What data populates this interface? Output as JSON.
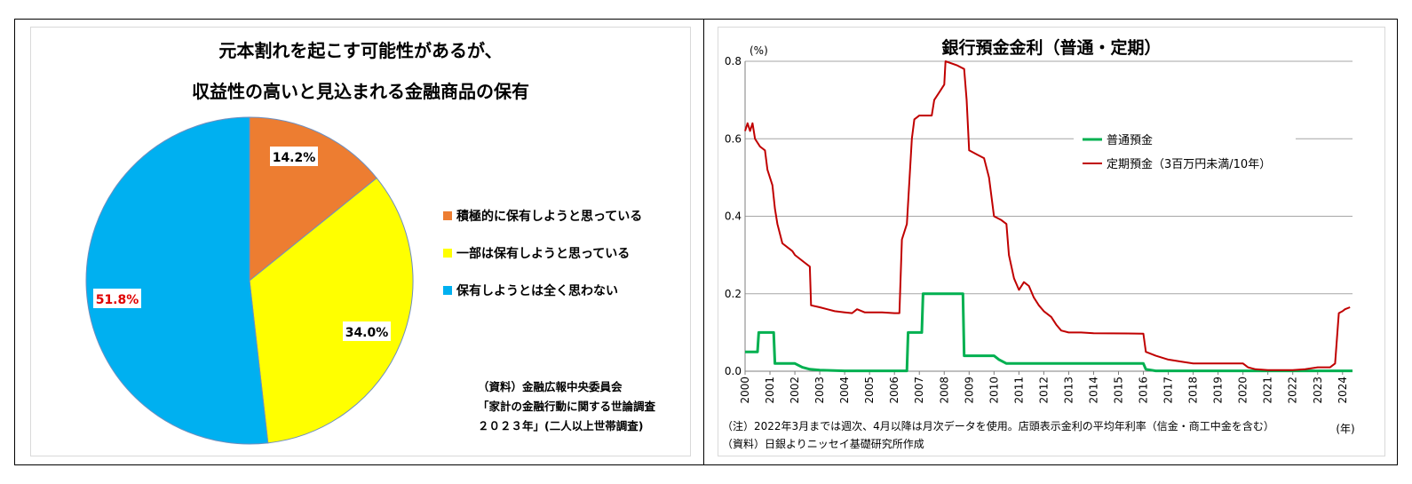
{
  "left": {
    "chart_data": {
      "type": "pie",
      "title_lines": [
        "元本割れを起こす可能性があるが、",
        "収益性の高いと見込まれる金融商品の保有"
      ],
      "slices": [
        {
          "label": "積極的に保有しようと思っている",
          "value": 14.2,
          "display": "14.2%",
          "color": "#ED7D31",
          "label_color": "#000000"
        },
        {
          "label": "一部は保有しようと思っている",
          "value": 34.0,
          "display": "34.0%",
          "color": "#FFFF00",
          "label_color": "#000000"
        },
        {
          "label": "保有しようとは全く思わない",
          "value": 51.8,
          "display": "51.8%",
          "color": "#00B0F0",
          "label_color": "#E00000"
        }
      ]
    },
    "source_lines": [
      "（資料）金融広報中央委員会",
      "「家計の金融行動に関する世論調査",
      "２０２３年」(二人以上世帯調査)"
    ]
  },
  "right": {
    "chart_data": {
      "type": "line",
      "title": "銀行預金金利（普通・定期）",
      "ylabel": "(%)",
      "xlabel": "(年)",
      "ylim": [
        0,
        0.8
      ],
      "yticks": [
        "0.0",
        "0.2",
        "0.4",
        "0.6",
        "0.8"
      ],
      "xlim": [
        2000,
        2024.4
      ],
      "xticks": [
        "2000",
        "2001",
        "2002",
        "2003",
        "2004",
        "2005",
        "2006",
        "2007",
        "2008",
        "2009",
        "2010",
        "2011",
        "2012",
        "2013",
        "2014",
        "2015",
        "2016",
        "2017",
        "2018",
        "2019",
        "2020",
        "2021",
        "2022",
        "2023",
        "2024"
      ],
      "grid": true,
      "legend_position": "upper-right",
      "series": [
        {
          "name": "普通預金",
          "color": "#00B050",
          "points": [
            [
              2000,
              0.05
            ],
            [
              2000.5,
              0.05
            ],
            [
              2000.55,
              0.1
            ],
            [
              2001.15,
              0.1
            ],
            [
              2001.2,
              0.02
            ],
            [
              2002.0,
              0.02
            ],
            [
              2002.3,
              0.01
            ],
            [
              2002.6,
              0.005
            ],
            [
              2003.0,
              0.003
            ],
            [
              2004.0,
              0.001
            ],
            [
              2006.5,
              0.001
            ],
            [
              2006.55,
              0.1
            ],
            [
              2007.1,
              0.1
            ],
            [
              2007.15,
              0.2
            ],
            [
              2008.75,
              0.2
            ],
            [
              2008.8,
              0.04
            ],
            [
              2010.0,
              0.04
            ],
            [
              2010.2,
              0.03
            ],
            [
              2010.5,
              0.02
            ],
            [
              2011.0,
              0.02
            ],
            [
              2016.0,
              0.02
            ],
            [
              2016.1,
              0.005
            ],
            [
              2016.5,
              0.001
            ],
            [
              2024.0,
              0.001
            ],
            [
              2024.4,
              0.001
            ]
          ]
        },
        {
          "name": "定期預金（3百万円未満/10年）",
          "color": "#C00000",
          "points": [
            [
              2000,
              0.62
            ],
            [
              2000.1,
              0.64
            ],
            [
              2000.2,
              0.62
            ],
            [
              2000.3,
              0.64
            ],
            [
              2000.4,
              0.6
            ],
            [
              2000.6,
              0.58
            ],
            [
              2000.8,
              0.57
            ],
            [
              2000.9,
              0.52
            ],
            [
              2001.1,
              0.48
            ],
            [
              2001.2,
              0.42
            ],
            [
              2001.3,
              0.38
            ],
            [
              2001.5,
              0.33
            ],
            [
              2001.7,
              0.32
            ],
            [
              2001.9,
              0.31
            ],
            [
              2002.0,
              0.3
            ],
            [
              2002.2,
              0.29
            ],
            [
              2002.4,
              0.28
            ],
            [
              2002.6,
              0.27
            ],
            [
              2002.65,
              0.17
            ],
            [
              2003.0,
              0.165
            ],
            [
              2003.3,
              0.16
            ],
            [
              2003.6,
              0.155
            ],
            [
              2004.0,
              0.152
            ],
            [
              2004.3,
              0.15
            ],
            [
              2004.5,
              0.16
            ],
            [
              2004.8,
              0.152
            ],
            [
              2005.5,
              0.152
            ],
            [
              2006.0,
              0.15
            ],
            [
              2006.2,
              0.15
            ],
            [
              2006.3,
              0.34
            ],
            [
              2006.5,
              0.38
            ],
            [
              2006.7,
              0.6
            ],
            [
              2006.8,
              0.65
            ],
            [
              2007.0,
              0.66
            ],
            [
              2007.5,
              0.66
            ],
            [
              2007.6,
              0.7
            ],
            [
              2007.8,
              0.72
            ],
            [
              2008.0,
              0.74
            ],
            [
              2008.05,
              0.8
            ],
            [
              2008.5,
              0.79
            ],
            [
              2008.8,
              0.78
            ],
            [
              2008.9,
              0.7
            ],
            [
              2009.0,
              0.57
            ],
            [
              2009.3,
              0.56
            ],
            [
              2009.6,
              0.55
            ],
            [
              2009.8,
              0.5
            ],
            [
              2010.0,
              0.4
            ],
            [
              2010.3,
              0.39
            ],
            [
              2010.5,
              0.38
            ],
            [
              2010.6,
              0.3
            ],
            [
              2010.8,
              0.24
            ],
            [
              2011.0,
              0.21
            ],
            [
              2011.2,
              0.23
            ],
            [
              2011.4,
              0.22
            ],
            [
              2011.6,
              0.19
            ],
            [
              2011.8,
              0.17
            ],
            [
              2012.0,
              0.155
            ],
            [
              2012.3,
              0.14
            ],
            [
              2012.5,
              0.12
            ],
            [
              2012.7,
              0.105
            ],
            [
              2013.0,
              0.1
            ],
            [
              2013.5,
              0.1
            ],
            [
              2014.0,
              0.098
            ],
            [
              2016.0,
              0.097
            ],
            [
              2016.1,
              0.05
            ],
            [
              2016.5,
              0.04
            ],
            [
              2017.0,
              0.03
            ],
            [
              2017.5,
              0.025
            ],
            [
              2018.0,
              0.02
            ],
            [
              2020.0,
              0.02
            ],
            [
              2020.2,
              0.01
            ],
            [
              2020.5,
              0.005
            ],
            [
              2021.0,
              0.003
            ],
            [
              2022.0,
              0.003
            ],
            [
              2022.5,
              0.005
            ],
            [
              2022.8,
              0.008
            ],
            [
              2023.0,
              0.01
            ],
            [
              2023.5,
              0.01
            ],
            [
              2023.7,
              0.02
            ],
            [
              2023.85,
              0.15
            ],
            [
              2024.0,
              0.155
            ],
            [
              2024.1,
              0.16
            ],
            [
              2024.3,
              0.165
            ]
          ]
        }
      ]
    },
    "note_lines": [
      "（注）2022年3月までは週次、4月以降は月次データを使用。店頭表示金利の平均年利率（信金・商工中金を含む）",
      "（資料）日銀よりニッセイ基礎研究所作成"
    ]
  }
}
